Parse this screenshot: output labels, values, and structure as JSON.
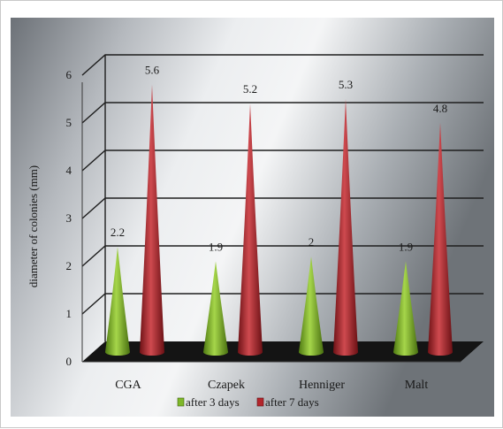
{
  "chart_data": {
    "type": "bar",
    "title": "",
    "xlabel": "",
    "ylabel": "diameter of colonies (mm)",
    "ylim": [
      0,
      6
    ],
    "yticks": [
      0,
      1,
      2,
      3,
      4,
      5,
      6
    ],
    "categories": [
      "CGA",
      "Czapek",
      "Henniger",
      "Malt"
    ],
    "series": [
      {
        "name": "after 3 days",
        "values": [
          2.2,
          1.9,
          2,
          1.9
        ],
        "color": "#7fb82a",
        "data_labels": [
          "2.2",
          "1.9",
          "2",
          "1.9"
        ]
      },
      {
        "name": "after 7 days",
        "values": [
          5.6,
          5.2,
          5.3,
          4.8
        ],
        "color": "#b3262c",
        "data_labels": [
          "5.6",
          "5.2",
          "5.3",
          "4.8"
        ]
      }
    ],
    "grid": true,
    "legend_position": "bottom",
    "mark_shape": "cone",
    "style": "3d"
  }
}
